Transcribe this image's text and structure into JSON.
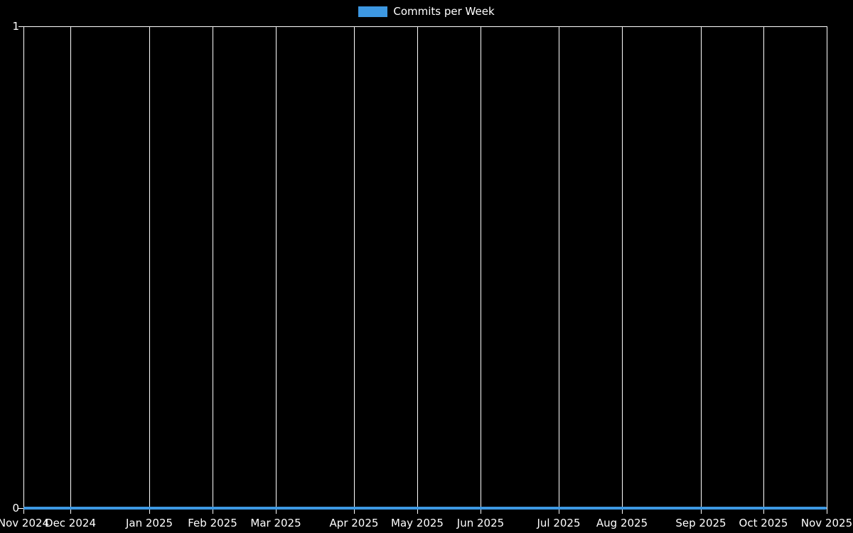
{
  "colors": {
    "background": "#000000",
    "text": "#ffffff",
    "grid": "#ffffff",
    "series": "#3d98e2"
  },
  "legend": {
    "label": "Commits per Week"
  },
  "y_axis": {
    "max_label": "1",
    "min_label": "0"
  },
  "chart_data": {
    "type": "line",
    "title": "Commits per Week",
    "xlabel": "",
    "ylabel": "",
    "ylim": [
      0,
      1
    ],
    "y_ticks": [
      0,
      1
    ],
    "grid": true,
    "legend_position": "top-center",
    "background": "#000000",
    "x_unit": "week",
    "x_range_weeks": 51,
    "x": [
      0,
      1,
      2,
      3,
      4,
      5,
      6,
      7,
      8,
      9,
      10,
      11,
      12,
      13,
      14,
      15,
      16,
      17,
      18,
      19,
      20,
      21,
      22,
      23,
      24,
      25,
      26,
      27,
      28,
      29,
      30,
      31,
      32,
      33,
      34,
      35,
      36,
      37,
      38,
      39,
      40,
      41,
      42,
      43,
      44,
      45,
      46,
      47,
      48,
      49,
      50,
      51
    ],
    "series": [
      {
        "name": "Commits per Week",
        "color": "#3d98e2",
        "values": [
          0,
          0,
          0,
          0,
          0,
          0,
          0,
          0,
          0,
          0,
          0,
          0,
          0,
          0,
          0,
          0,
          0,
          0,
          0,
          0,
          0,
          0,
          0,
          0,
          0,
          0,
          0,
          0,
          0,
          0,
          0,
          0,
          0,
          0,
          0,
          0,
          0,
          0,
          0,
          0,
          0,
          0,
          0,
          0,
          0,
          0,
          0,
          0,
          0,
          0,
          0,
          0
        ]
      }
    ],
    "x_ticks": [
      {
        "label": "Nov 2024",
        "week": 0
      },
      {
        "label": "Dec 2024",
        "week": 3
      },
      {
        "label": "Jan 2025",
        "week": 8
      },
      {
        "label": "Feb 2025",
        "week": 12
      },
      {
        "label": "Mar 2025",
        "week": 16
      },
      {
        "label": "Apr 2025",
        "week": 21
      },
      {
        "label": "May 2025",
        "week": 25
      },
      {
        "label": "Jun 2025",
        "week": 29
      },
      {
        "label": "Jul 2025",
        "week": 34
      },
      {
        "label": "Aug 2025",
        "week": 38
      },
      {
        "label": "Sep 2025",
        "week": 43
      },
      {
        "label": "Oct 2025",
        "week": 47
      },
      {
        "label": "Nov 2025",
        "week": 51
      }
    ]
  }
}
